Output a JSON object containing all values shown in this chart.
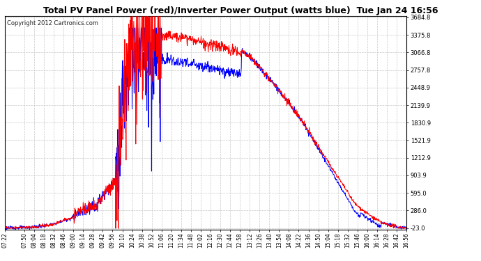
{
  "title": "Total PV Panel Power (red)/Inverter Power Output (watts blue)  Tue Jan 24 16:56",
  "copyright": "Copyright 2012 Cartronics.com",
  "bg_color": "#ffffff",
  "plot_bg_color": "#ffffff",
  "grid_color": "#c8c8c8",
  "grid_style": "--",
  "red_color": "#ff0000",
  "blue_color": "#0000ff",
  "ylim_min": -23.0,
  "ylim_max": 3684.8,
  "yticks": [
    3684.8,
    3375.8,
    3066.8,
    2757.8,
    2448.9,
    2139.9,
    1830.9,
    1521.9,
    1212.9,
    903.9,
    595.0,
    286.0,
    -23.0
  ],
  "xtick_labels": [
    "07:22",
    "07:50",
    "08:04",
    "08:18",
    "08:32",
    "08:46",
    "09:00",
    "09:14",
    "09:28",
    "09:42",
    "09:56",
    "10:10",
    "10:24",
    "10:38",
    "10:52",
    "11:06",
    "11:20",
    "11:34",
    "11:48",
    "12:02",
    "12:16",
    "12:30",
    "12:44",
    "12:58",
    "13:12",
    "13:26",
    "13:40",
    "13:54",
    "14:08",
    "14:22",
    "14:36",
    "14:50",
    "15:04",
    "15:18",
    "15:32",
    "15:46",
    "16:00",
    "16:14",
    "16:28",
    "16:42",
    "16:56"
  ],
  "line_width": 0.7,
  "title_fontsize": 9,
  "tick_fontsize": 6,
  "copyright_fontsize": 6
}
